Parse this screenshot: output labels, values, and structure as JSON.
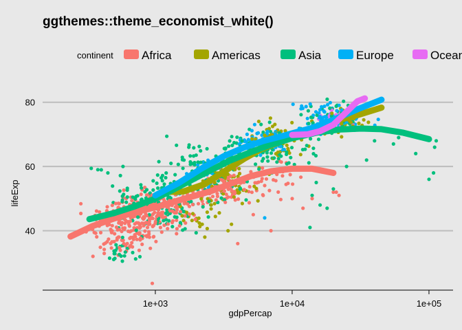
{
  "chart_data": {
    "type": "scatter",
    "title": "ggthemes::theme_economist_white()",
    "xlabel": "gdpPercap",
    "ylabel": "lifeExp",
    "x_scale": "log10",
    "xlim": [
      150,
      150000
    ],
    "ylim": [
      21.5,
      85.5
    ],
    "x_ticks": [
      1000,
      10000,
      100000
    ],
    "x_tick_labels": [
      "1e+03",
      "1e+04",
      "1e+05"
    ],
    "y_ticks": [
      40,
      60,
      80
    ],
    "y_tick_labels": [
      "40",
      "60",
      "80"
    ],
    "grid": "horizontal major lines",
    "legend": {
      "title": "continent",
      "position": "top"
    },
    "series": [
      {
        "name": "Africa",
        "color": "#F8766D",
        "smooth": [
          [
            240,
            38.2
          ],
          [
            350,
            41.5
          ],
          [
            500,
            43.8
          ],
          [
            700,
            45.7
          ],
          [
            1000,
            47.3
          ],
          [
            1500,
            49.5
          ],
          [
            2500,
            52.2
          ],
          [
            3500,
            54.5
          ],
          [
            5000,
            57.0
          ],
          [
            7000,
            58.5
          ],
          [
            10000,
            59.3
          ],
          [
            14000,
            59.3
          ],
          [
            20000,
            58.0
          ]
        ],
        "clusters": [
          {
            "x": [
              240,
              2000
            ],
            "y": [
              34,
              52
            ],
            "n": 180
          },
          {
            "x": [
              400,
              3000
            ],
            "y": [
              40,
              56
            ],
            "n": 120
          },
          {
            "x": [
              1500,
              8000
            ],
            "y": [
              45,
              62
            ],
            "n": 80
          },
          {
            "x": [
              300,
              1200
            ],
            "y": [
              30,
              42
            ],
            "n": 35
          },
          {
            "x": [
              3000,
              20000
            ],
            "y": [
              48,
              66
            ],
            "n": 25
          }
        ],
        "points": [
          [
            950,
            23.6
          ],
          [
            10000,
            50
          ],
          [
            12000,
            47
          ],
          [
            14000,
            50
          ],
          [
            21000,
            52
          ],
          [
            20000,
            52
          ],
          [
            350,
            32
          ],
          [
            4000,
            36
          ],
          [
            5200,
            45
          ],
          [
            22000,
            51
          ],
          [
            7000,
            40
          ]
        ]
      },
      {
        "name": "Americas",
        "color": "#A3A500",
        "smooth": [
          [
            1100,
            52.0
          ],
          [
            1600,
            52.2
          ],
          [
            2300,
            54.5
          ],
          [
            3200,
            58.5
          ],
          [
            4500,
            62.5
          ],
          [
            6000,
            65.5
          ],
          [
            8000,
            67.5
          ],
          [
            11000,
            69.8
          ],
          [
            15000,
            72.0
          ],
          [
            20000,
            74.0
          ],
          [
            30000,
            76.0
          ],
          [
            45000,
            78.3
          ]
        ],
        "clusters": [
          {
            "x": [
              1500,
              8000
            ],
            "y": [
              45,
              66
            ],
            "n": 80
          },
          {
            "x": [
              4000,
              14000
            ],
            "y": [
              60,
              76
            ],
            "n": 70
          },
          {
            "x": [
              12000,
              45000
            ],
            "y": [
              68,
              79
            ],
            "n": 50
          },
          {
            "x": [
              1100,
              3500
            ],
            "y": [
              38,
              52
            ],
            "n": 25
          }
        ],
        "points": [
          [
            2200,
            42
          ],
          [
            2300,
            38
          ],
          [
            3400,
            40
          ],
          [
            3600,
            42
          ]
        ]
      },
      {
        "name": "Asia",
        "color": "#00BF7D",
        "smooth": [
          [
            330,
            43.6
          ],
          [
            500,
            45.5
          ],
          [
            700,
            47.5
          ],
          [
            1000,
            50.0
          ],
          [
            1500,
            53.8
          ],
          [
            2200,
            57.5
          ],
          [
            3500,
            61.8
          ],
          [
            5000,
            64.5
          ],
          [
            7000,
            66.8
          ],
          [
            10000,
            68.8
          ],
          [
            15000,
            70.5
          ],
          [
            22000,
            71.5
          ],
          [
            32000,
            71.8
          ],
          [
            45000,
            71.6
          ],
          [
            65000,
            70.5
          ],
          [
            100000,
            68.5
          ]
        ],
        "clusters": [
          {
            "x": [
              330,
              3000
            ],
            "y": [
              36,
              60
            ],
            "n": 130
          },
          {
            "x": [
              800,
              6000
            ],
            "y": [
              45,
              72
            ],
            "n": 110
          },
          {
            "x": [
              2000,
              20000
            ],
            "y": [
              55,
              76
            ],
            "n": 90
          },
          {
            "x": [
              10000,
              45000
            ],
            "y": [
              68,
              82
            ],
            "n": 40
          },
          {
            "x": [
              400,
              1000
            ],
            "y": [
              28,
              38
            ],
            "n": 20
          }
        ],
        "points": [
          [
            340,
            59.4
          ],
          [
            380,
            59
          ],
          [
            580,
            60
          ],
          [
            450,
            58
          ],
          [
            60000,
            69
          ],
          [
            80000,
            64
          ],
          [
            100000,
            56
          ],
          [
            108000,
            58
          ],
          [
            110000,
            66
          ],
          [
            113000,
            68
          ],
          [
            40000,
            68
          ],
          [
            55000,
            67
          ],
          [
            14000,
            51
          ],
          [
            16000,
            48
          ],
          [
            13500,
            41
          ],
          [
            18000,
            47
          ],
          [
            15000,
            55
          ],
          [
            20000,
            53
          ],
          [
            25000,
            60
          ],
          [
            35000,
            62
          ]
        ]
      },
      {
        "name": "Europe",
        "color": "#00B0F6",
        "smooth": [
          [
            1000,
            51.0
          ],
          [
            1500,
            55.0
          ],
          [
            2200,
            59.5
          ],
          [
            3200,
            63.3
          ],
          [
            4500,
            66.0
          ],
          [
            6000,
            67.8
          ],
          [
            8000,
            69.2
          ],
          [
            10000,
            70.3
          ],
          [
            14000,
            72.0
          ],
          [
            20000,
            74.5
          ],
          [
            30000,
            77.8
          ],
          [
            45000,
            80.8
          ]
        ],
        "clusters": [
          {
            "x": [
              3000,
              12000
            ],
            "y": [
              62,
              74
            ],
            "n": 80
          },
          {
            "x": [
              8000,
              48000
            ],
            "y": [
              68,
              81
            ],
            "n": 90
          },
          {
            "x": [
              1200,
              4000
            ],
            "y": [
              46,
              66
            ],
            "n": 25
          }
        ],
        "points": [
          [
            6300,
            44
          ]
        ]
      },
      {
        "name": "Oceania",
        "color": "#E76BF3",
        "smooth": [
          [
            10000,
            69.8
          ],
          [
            13000,
            70.0
          ],
          [
            16000,
            71.0
          ],
          [
            20000,
            73.0
          ],
          [
            25000,
            77.0
          ],
          [
            30000,
            80.3
          ],
          [
            34000,
            81.2
          ]
        ],
        "clusters": [
          {
            "x": [
              10000,
              34000
            ],
            "y": [
              69,
              81
            ],
            "n": 24
          }
        ],
        "points": []
      }
    ]
  }
}
